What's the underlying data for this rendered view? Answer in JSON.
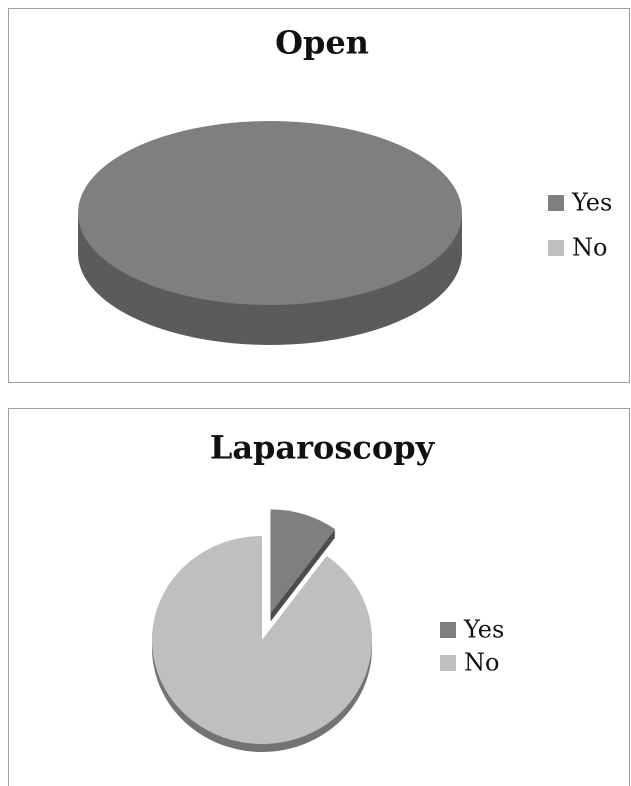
{
  "chart_data": [
    {
      "type": "pie",
      "title": "Open",
      "categories": [
        "Yes",
        "No"
      ],
      "values": [
        100,
        0
      ],
      "colors": [
        "#7f7f7f",
        "#bfbfbf"
      ]
    },
    {
      "type": "pie",
      "title": "Laparoscopy",
      "categories": [
        "Yes",
        "No"
      ],
      "values": [
        10,
        90
      ],
      "colors": [
        "#7f7f7f",
        "#bfbfbf"
      ]
    }
  ]
}
